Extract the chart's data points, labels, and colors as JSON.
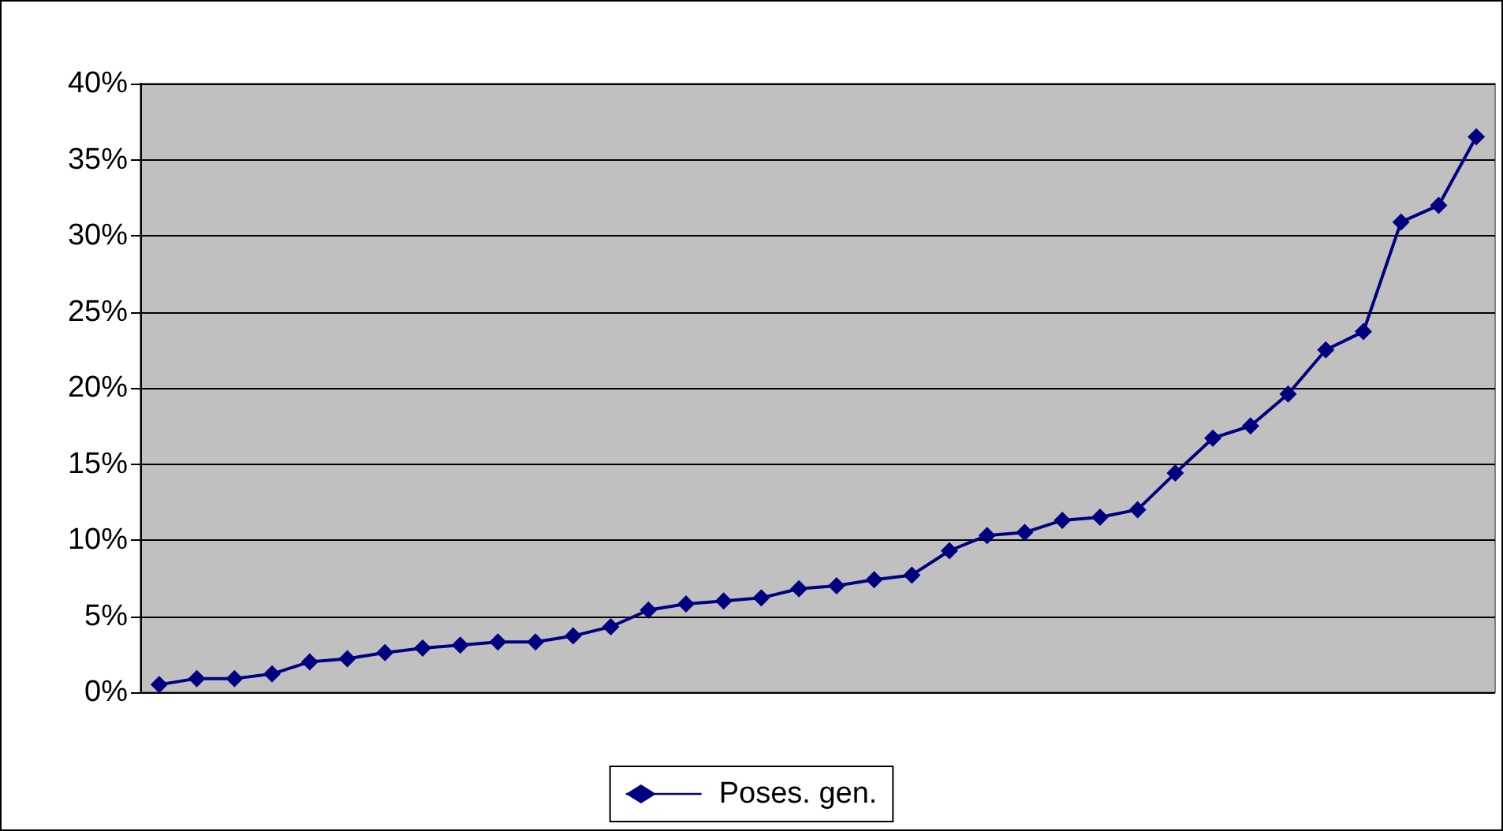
{
  "chart_data": {
    "type": "line",
    "categories": [
      null,
      null,
      null,
      null,
      null,
      null,
      null,
      null,
      null,
      null,
      null,
      null,
      null,
      null,
      null,
      null,
      null,
      null,
      null,
      null,
      null,
      null,
      null,
      null,
      null,
      null,
      null,
      null,
      null,
      null,
      null,
      null,
      null,
      null,
      null,
      null
    ],
    "series": [
      {
        "name": "Poses. gen.",
        "color": "#000080",
        "values": [
          0.5,
          0.9,
          0.9,
          1.2,
          2.0,
          2.2,
          2.6,
          2.9,
          3.1,
          3.3,
          3.3,
          3.7,
          4.3,
          5.4,
          5.8,
          6.0,
          6.2,
          6.8,
          7.0,
          7.4,
          7.7,
          9.3,
          10.3,
          10.5,
          11.3,
          11.5,
          12.0,
          14.4,
          16.7,
          17.5,
          19.6,
          22.5,
          23.7,
          30.9,
          32.0,
          36.5
        ]
      }
    ],
    "ylim": [
      0,
      40
    ],
    "yticks": [
      {
        "value": 0,
        "label": "0%"
      },
      {
        "value": 5,
        "label": "5%"
      },
      {
        "value": 10,
        "label": "10%"
      },
      {
        "value": 15,
        "label": "15%"
      },
      {
        "value": 20,
        "label": "20%"
      },
      {
        "value": 25,
        "label": "25%"
      },
      {
        "value": 30,
        "label": "30%"
      },
      {
        "value": 35,
        "label": "35%"
      },
      {
        "value": 40,
        "label": "40%"
      }
    ],
    "grid": "y",
    "legend": "bottom",
    "marker": "diamond",
    "line_style": "solid"
  }
}
